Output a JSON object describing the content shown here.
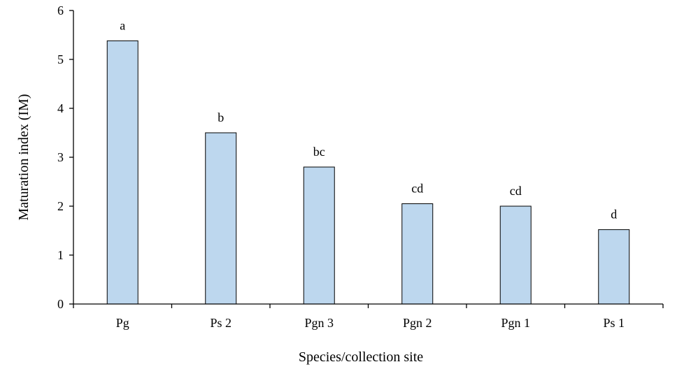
{
  "chart_data": {
    "type": "bar",
    "categories": [
      "Pg",
      "Ps 2",
      "Pgn 3",
      "Pgn 2",
      "Pgn 1",
      "Ps 1"
    ],
    "values": [
      5.38,
      3.5,
      2.8,
      2.05,
      2.0,
      1.52
    ],
    "data_labels": [
      "a",
      "b",
      "bc",
      "cd",
      "cd",
      "d"
    ],
    "title": "",
    "xlabel": "Species/collection site",
    "ylabel": "Maturation index (IM)",
    "ylim": [
      0,
      6
    ],
    "yticks": [
      "0",
      "1",
      "2",
      "3",
      "4",
      "5",
      "6"
    ],
    "grid": false,
    "legend": "none",
    "colors": {
      "bar_fill": "#bdd7ee",
      "bar_stroke": "#000000",
      "axis": "#000000"
    }
  }
}
